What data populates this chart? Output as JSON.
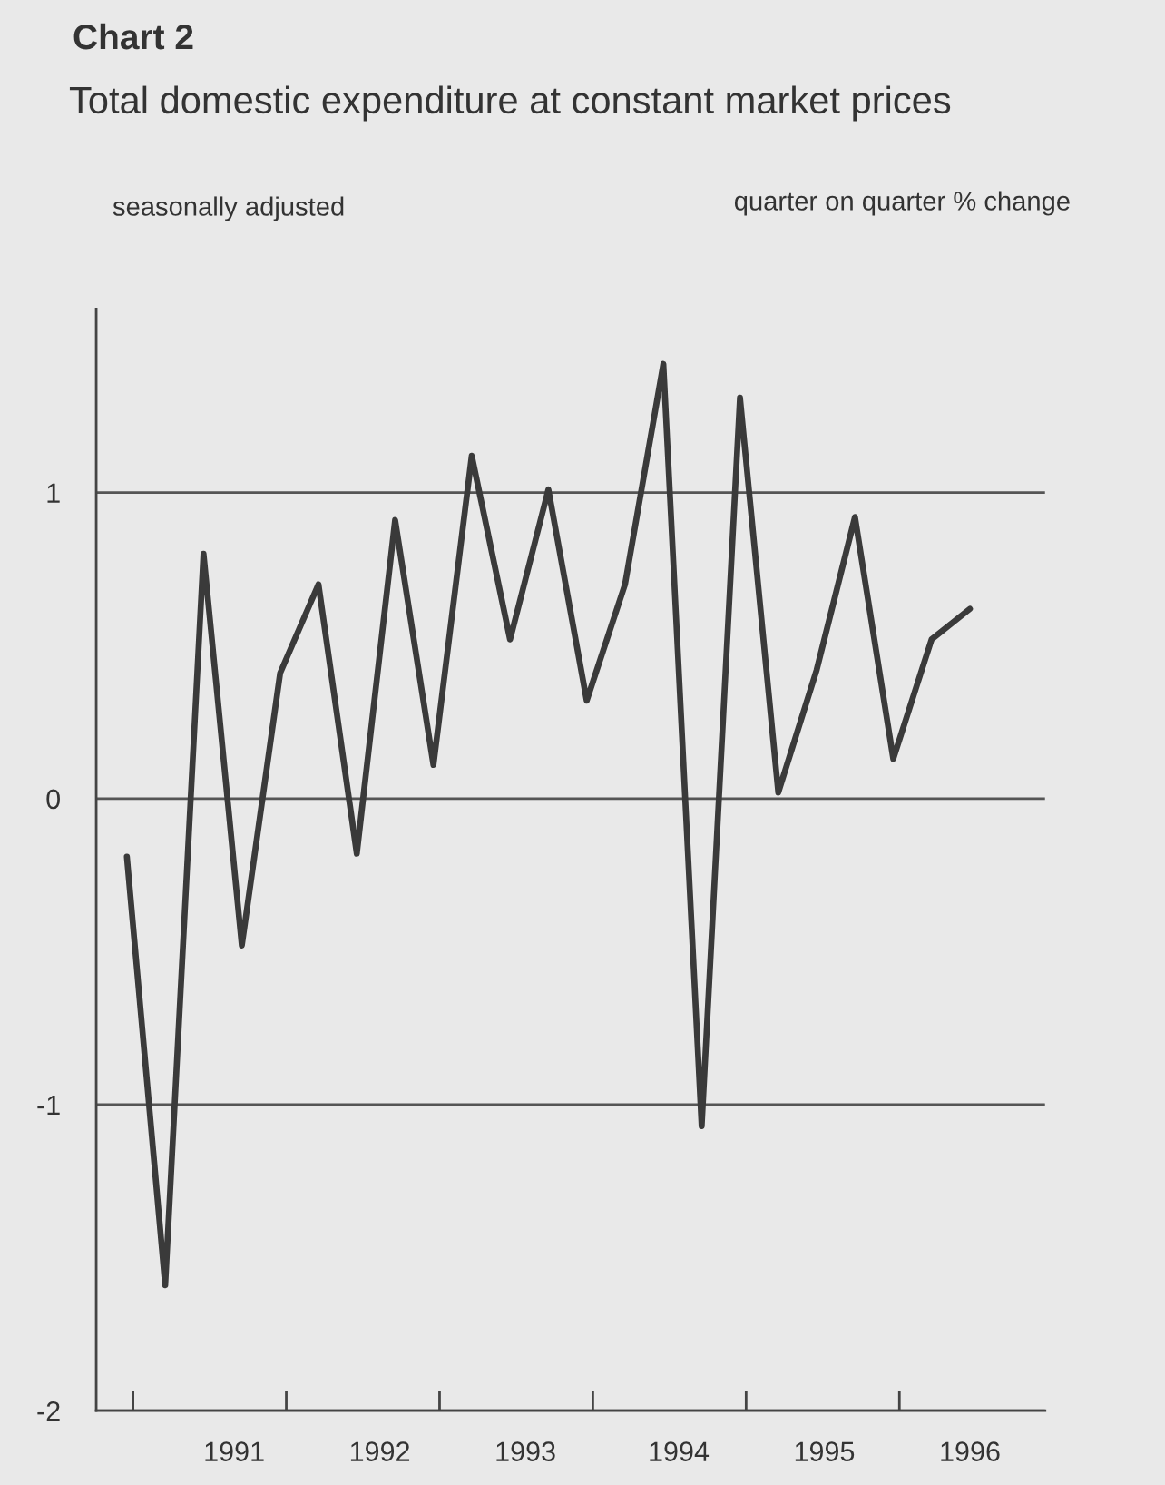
{
  "chart_data": {
    "type": "line",
    "title": "Chart 2",
    "subtitle": "Total domestic expenditure at constant market prices",
    "ylabel": "quarter on quarter % change",
    "annotations": [
      "seasonally adjusted"
    ],
    "x": [
      1990.75,
      1991.0,
      1991.25,
      1991.5,
      1991.75,
      1992.0,
      1992.25,
      1992.5,
      1992.75,
      1993.0,
      1993.25,
      1993.5,
      1993.75,
      1994.0,
      1994.25,
      1994.5,
      1994.75,
      1995.0,
      1995.25,
      1995.5,
      1995.75,
      1996.0,
      1996.25
    ],
    "series": [
      {
        "color": "#3a3a3a",
        "values": [
          -0.19,
          -1.59,
          0.8,
          -0.48,
          0.41,
          0.7,
          -0.18,
          0.91,
          0.11,
          1.12,
          0.52,
          1.01,
          0.32,
          0.7,
          1.42,
          -1.07,
          1.31,
          0.02,
          0.42,
          0.92,
          0.13,
          0.52,
          0.62
        ]
      }
    ],
    "xlim": [
      1990.55,
      1996.74
    ],
    "ylim": [
      -2,
      1.6
    ],
    "yticks": [
      -2,
      -1,
      0,
      1
    ],
    "xticks": [
      {
        "value": 1990.79,
        "label": null
      },
      {
        "value": 1991.79,
        "label": null
      },
      {
        "value": 1992.79,
        "label": null
      },
      {
        "value": 1993.79,
        "label": null
      },
      {
        "value": 1994.79,
        "label": null
      },
      {
        "value": 1995.79,
        "label": null
      },
      {
        "value": 1991.45,
        "label": "1991"
      },
      {
        "value": 1992.4,
        "label": "1992"
      },
      {
        "value": 1993.35,
        "label": "1993"
      },
      {
        "value": 1994.35,
        "label": "1994"
      },
      {
        "value": 1995.3,
        "label": "1995"
      },
      {
        "value": 1996.25,
        "label": "1996"
      }
    ],
    "grid": "y",
    "legend": false,
    "marker": "none",
    "line_style": "solid"
  }
}
